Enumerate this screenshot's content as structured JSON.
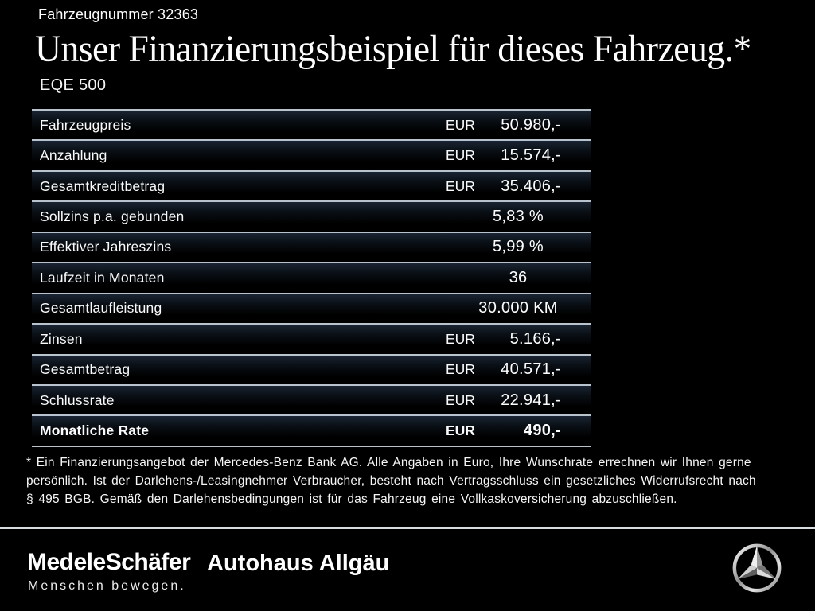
{
  "header": {
    "vehicle_number": "Fahrzeugnummer 32363",
    "title": "Unser Finanzierungsbeispiel für dieses Fahrzeug.*",
    "model": "EQE 500"
  },
  "table": {
    "rows": [
      {
        "label": "Fahrzeugpreis",
        "currency": "EUR",
        "value": "50.980,-",
        "emphasis": false
      },
      {
        "label": "Anzahlung",
        "currency": "EUR",
        "value": "15.574,-",
        "emphasis": false
      },
      {
        "label": "Gesamtkreditbetrag",
        "currency": "EUR",
        "value": "35.406,-",
        "emphasis": false
      },
      {
        "label": "Sollzins p.a. gebunden",
        "currency": "",
        "value": "5,83 %",
        "emphasis": false
      },
      {
        "label": "Effektiver Jahreszins",
        "currency": "",
        "value": "5,99 %",
        "emphasis": false
      },
      {
        "label": "Laufzeit in Monaten",
        "currency": "",
        "value": "36",
        "emphasis": false
      },
      {
        "label": "Gesamtlaufleistung",
        "currency": "",
        "value": "30.000 KM",
        "emphasis": false
      },
      {
        "label": "Zinsen",
        "currency": "EUR",
        "value": "5.166,-",
        "emphasis": false
      },
      {
        "label": "Gesamtbetrag",
        "currency": "EUR",
        "value": "40.571,-",
        "emphasis": false
      },
      {
        "label": "Schlussrate",
        "currency": "EUR",
        "value": "22.941,-",
        "emphasis": false
      },
      {
        "label": "Monatliche Rate",
        "currency": "EUR",
        "value": "490,-",
        "emphasis": true
      }
    ]
  },
  "footnote": {
    "lines": [
      "* Ein Finanzierungsangebot der Mercedes-Benz Bank AG. Alle Angaben in Euro, Ihre Wunschrate errechnen wir Ihnen gerne",
      "persönlich. Ist der Darlehens-/Leasingnehmer Verbraucher, besteht nach Vertragsschluss ein gesetzliches Widerrufsrecht nach",
      "§ 495 BGB. Gemäß den Darlehensbedingungen ist für das Fahrzeug eine Vollkaskoversicherung abzuschließen."
    ]
  },
  "footer": {
    "dealer_logo": "MedeleSchäfer",
    "dealer_tagline": "Menschen bewegen.",
    "dealer2_logo": "Autohaus Allgäu",
    "brand_icon": "mercedes-star-icon"
  },
  "colors": {
    "background": "#000000",
    "text": "#fdfdfd",
    "divider": "#b9c3cd",
    "row_gradient_top": "#1a2533"
  }
}
